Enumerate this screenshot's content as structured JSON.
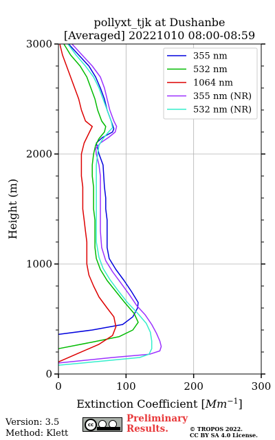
{
  "chart_data": {
    "type": "line",
    "title_line1": "pollyxt_tjk at Dushanbe",
    "title_line2": "[Averaged] 20221010 08:00-08:59",
    "xlabel": "Extinction Coefficient [",
    "xlabel_unit": "Mm",
    "xlabel_exp": "−1",
    "xlabel_end": "]",
    "ylabel": "Height (m)",
    "xlim": [
      0,
      300
    ],
    "ylim": [
      0,
      3000
    ],
    "xticks": [
      0,
      100,
      200,
      300
    ],
    "yticks": [
      0,
      1000,
      2000,
      3000
    ],
    "grid": true,
    "legend_position": "top-right",
    "series": [
      {
        "name": "355 nm",
        "color": "#0000dd",
        "points": [
          [
            0,
            360
          ],
          [
            50,
            400
          ],
          [
            95,
            450
          ],
          [
            110,
            520
          ],
          [
            117,
            600
          ],
          [
            118,
            650
          ],
          [
            108,
            750
          ],
          [
            97,
            850
          ],
          [
            85,
            950
          ],
          [
            75,
            1050
          ],
          [
            72,
            1150
          ],
          [
            72,
            1300
          ],
          [
            72,
            1400
          ],
          [
            70,
            1500
          ],
          [
            70,
            1600
          ],
          [
            68,
            1700
          ],
          [
            67,
            1800
          ],
          [
            66,
            1900
          ],
          [
            60,
            2000
          ],
          [
            56,
            2100
          ],
          [
            65,
            2150
          ],
          [
            80,
            2200
          ],
          [
            82,
            2230
          ],
          [
            78,
            2300
          ],
          [
            72,
            2400
          ],
          [
            68,
            2500
          ],
          [
            62,
            2600
          ],
          [
            55,
            2700
          ],
          [
            45,
            2800
          ],
          [
            30,
            2900
          ],
          [
            15,
            3000
          ]
        ]
      },
      {
        "name": "532 nm",
        "color": "#00bb00",
        "points": [
          [
            0,
            230
          ],
          [
            50,
            290
          ],
          [
            90,
            340
          ],
          [
            110,
            400
          ],
          [
            118,
            470
          ],
          [
            112,
            550
          ],
          [
            98,
            650
          ],
          [
            85,
            750
          ],
          [
            72,
            850
          ],
          [
            62,
            950
          ],
          [
            56,
            1050
          ],
          [
            54,
            1150
          ],
          [
            54,
            1300
          ],
          [
            54,
            1400
          ],
          [
            52,
            1500
          ],
          [
            52,
            1600
          ],
          [
            52,
            1700
          ],
          [
            50,
            1800
          ],
          [
            50,
            1900
          ],
          [
            52,
            2000
          ],
          [
            55,
            2080
          ],
          [
            60,
            2140
          ],
          [
            68,
            2200
          ],
          [
            70,
            2250
          ],
          [
            64,
            2300
          ],
          [
            58,
            2400
          ],
          [
            54,
            2500
          ],
          [
            48,
            2600
          ],
          [
            42,
            2700
          ],
          [
            32,
            2800
          ],
          [
            18,
            2900
          ],
          [
            8,
            3000
          ]
        ]
      },
      {
        "name": "1064 nm",
        "color": "#dd0000",
        "points": [
          [
            0,
            110
          ],
          [
            30,
            190
          ],
          [
            60,
            270
          ],
          [
            80,
            350
          ],
          [
            85,
            430
          ],
          [
            82,
            520
          ],
          [
            72,
            600
          ],
          [
            60,
            700
          ],
          [
            52,
            800
          ],
          [
            45,
            900
          ],
          [
            42,
            1000
          ],
          [
            42,
            1100
          ],
          [
            42,
            1200
          ],
          [
            40,
            1300
          ],
          [
            38,
            1400
          ],
          [
            36,
            1500
          ],
          [
            36,
            1600
          ],
          [
            36,
            1700
          ],
          [
            34,
            1800
          ],
          [
            34,
            1900
          ],
          [
            34,
            2000
          ],
          [
            38,
            2100
          ],
          [
            46,
            2200
          ],
          [
            50,
            2250
          ],
          [
            40,
            2300
          ],
          [
            34,
            2400
          ],
          [
            30,
            2500
          ],
          [
            24,
            2600
          ],
          [
            18,
            2700
          ],
          [
            12,
            2800
          ],
          [
            6,
            2900
          ],
          [
            2,
            3000
          ]
        ]
      },
      {
        "name": "355 nm (NR)",
        "color": "#9b30ff",
        "points": [
          [
            0,
            100
          ],
          [
            80,
            150
          ],
          [
            135,
            180
          ],
          [
            150,
            210
          ],
          [
            152,
            250
          ],
          [
            150,
            300
          ],
          [
            145,
            370
          ],
          [
            138,
            450
          ],
          [
            128,
            540
          ],
          [
            116,
            620
          ],
          [
            105,
            720
          ],
          [
            92,
            830
          ],
          [
            80,
            930
          ],
          [
            70,
            1030
          ],
          [
            64,
            1150
          ],
          [
            62,
            1300
          ],
          [
            62,
            1400
          ],
          [
            62,
            1500
          ],
          [
            62,
            1600
          ],
          [
            62,
            1700
          ],
          [
            62,
            1800
          ],
          [
            60,
            1900
          ],
          [
            56,
            2000
          ],
          [
            55,
            2050
          ],
          [
            62,
            2100
          ],
          [
            74,
            2150
          ],
          [
            84,
            2200
          ],
          [
            86,
            2250
          ],
          [
            82,
            2300
          ],
          [
            76,
            2400
          ],
          [
            72,
            2500
          ],
          [
            68,
            2600
          ],
          [
            62,
            2700
          ],
          [
            50,
            2800
          ],
          [
            35,
            2900
          ],
          [
            20,
            3000
          ]
        ]
      },
      {
        "name": "532 nm (NR)",
        "color": "#33eecc",
        "points": [
          [
            0,
            80
          ],
          [
            70,
            120
          ],
          [
            120,
            150
          ],
          [
            134,
            180
          ],
          [
            138,
            230
          ],
          [
            138,
            300
          ],
          [
            136,
            380
          ],
          [
            130,
            460
          ],
          [
            116,
            560
          ],
          [
            102,
            650
          ],
          [
            88,
            760
          ],
          [
            76,
            860
          ],
          [
            66,
            960
          ],
          [
            60,
            1060
          ],
          [
            56,
            1200
          ],
          [
            56,
            1300
          ],
          [
            56,
            1400
          ],
          [
            56,
            1500
          ],
          [
            56,
            1600
          ],
          [
            56,
            1700
          ],
          [
            56,
            1800
          ],
          [
            56,
            1900
          ],
          [
            58,
            2000
          ],
          [
            60,
            2080
          ],
          [
            66,
            2140
          ],
          [
            74,
            2200
          ],
          [
            80,
            2240
          ],
          [
            78,
            2300
          ],
          [
            72,
            2400
          ],
          [
            66,
            2500
          ],
          [
            60,
            2600
          ],
          [
            52,
            2700
          ],
          [
            40,
            2800
          ],
          [
            26,
            2900
          ],
          [
            14,
            3000
          ]
        ]
      }
    ]
  },
  "footer": {
    "version": "Version: 3.5",
    "method": "Method: Klett",
    "cc_label": "cc",
    "preliminary_line1": "Preliminary",
    "preliminary_line2": "Results.",
    "copyright_line1": "© TROPOS 2022.",
    "copyright_line2": "CC BY SA 4.0 License."
  }
}
